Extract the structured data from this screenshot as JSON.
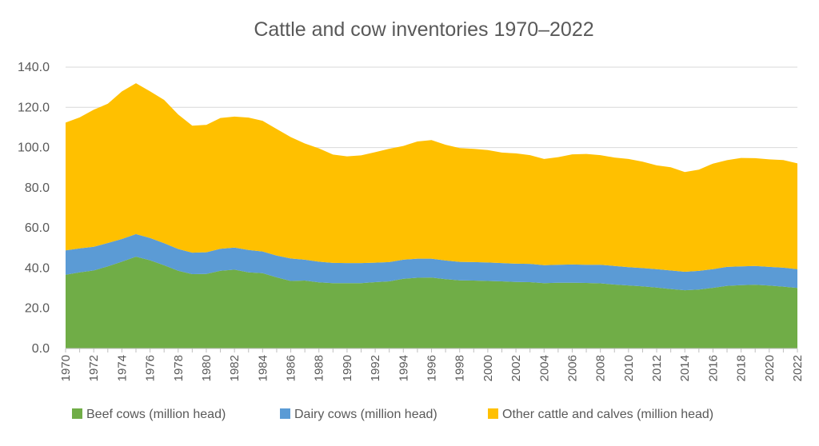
{
  "chart_data": {
    "type": "area",
    "stacked": true,
    "title": "Cattle and cow inventories 1970–2022",
    "xlabel": "",
    "ylabel": "",
    "ylim": [
      0,
      140
    ],
    "yticks": [
      "0.0",
      "20.0",
      "40.0",
      "60.0",
      "80.0",
      "100.0",
      "120.0",
      "140.0"
    ],
    "xtick_labels": [
      "1970",
      "1972",
      "1974",
      "1976",
      "1978",
      "1980",
      "1982",
      "1984",
      "1986",
      "1988",
      "1990",
      "1992",
      "1994",
      "1996",
      "1998",
      "2000",
      "2002",
      "2004",
      "2006",
      "2008",
      "2010",
      "2012",
      "2014",
      "2016",
      "2018",
      "2020",
      "2022"
    ],
    "grid": true,
    "legend_position": "bottom",
    "x": [
      1970,
      1971,
      1972,
      1973,
      1974,
      1975,
      1976,
      1977,
      1978,
      1979,
      1980,
      1981,
      1982,
      1983,
      1984,
      1985,
      1986,
      1987,
      1988,
      1989,
      1990,
      1991,
      1992,
      1993,
      1994,
      1995,
      1996,
      1997,
      1998,
      1999,
      2000,
      2001,
      2002,
      2003,
      2004,
      2005,
      2006,
      2007,
      2008,
      2009,
      2010,
      2011,
      2012,
      2013,
      2014,
      2015,
      2016,
      2017,
      2018,
      2019,
      2020,
      2021,
      2022
    ],
    "series": [
      {
        "name": "Beef cows (million head)",
        "color": "#70ad47",
        "values": [
          36.7,
          37.9,
          38.8,
          40.9,
          43.2,
          45.7,
          43.9,
          41.4,
          38.7,
          37.0,
          37.1,
          38.7,
          39.2,
          37.9,
          37.5,
          35.4,
          33.6,
          33.8,
          32.9,
          32.5,
          32.5,
          32.5,
          33.0,
          33.4,
          34.7,
          35.2,
          35.3,
          34.5,
          33.9,
          33.8,
          33.6,
          33.4,
          33.1,
          33.0,
          32.5,
          32.7,
          32.7,
          32.6,
          32.4,
          31.8,
          31.4,
          30.9,
          30.3,
          29.6,
          29.0,
          29.3,
          30.2,
          31.2,
          31.5,
          31.7,
          31.3,
          30.8,
          30.1
        ]
      },
      {
        "name": "Dairy cows (million head)",
        "color": "#5b9bd5",
        "values": [
          12.1,
          11.9,
          11.8,
          11.6,
          11.3,
          11.2,
          11.1,
          11.0,
          10.8,
          10.7,
          10.8,
          10.9,
          11.0,
          11.1,
          10.8,
          10.8,
          11.2,
          10.4,
          10.3,
          10.1,
          10.0,
          10.0,
          9.7,
          9.6,
          9.5,
          9.5,
          9.4,
          9.3,
          9.2,
          9.2,
          9.2,
          9.1,
          9.1,
          9.1,
          9.0,
          9.0,
          9.1,
          9.1,
          9.3,
          9.3,
          9.1,
          9.1,
          9.2,
          9.2,
          9.2,
          9.3,
          9.3,
          9.4,
          9.4,
          9.4,
          9.3,
          9.4,
          9.4
        ]
      },
      {
        "name": "Other cattle and calves (million head)",
        "color": "#ffc000",
        "values": [
          63.6,
          65.2,
          68.2,
          69.3,
          73.4,
          75.1,
          73.0,
          71.3,
          66.9,
          63.2,
          63.4,
          65.1,
          65.2,
          65.9,
          65.0,
          63.0,
          60.4,
          57.8,
          56.4,
          53.9,
          53.1,
          53.6,
          55.0,
          56.4,
          56.6,
          58.3,
          59.0,
          57.6,
          56.6,
          56.3,
          55.9,
          55.0,
          54.9,
          54.1,
          52.8,
          53.5,
          54.8,
          55.1,
          54.5,
          53.9,
          53.8,
          53.0,
          51.6,
          51.4,
          49.6,
          50.4,
          52.5,
          53.1,
          53.9,
          53.6,
          53.5,
          53.6,
          52.6
        ]
      }
    ]
  }
}
